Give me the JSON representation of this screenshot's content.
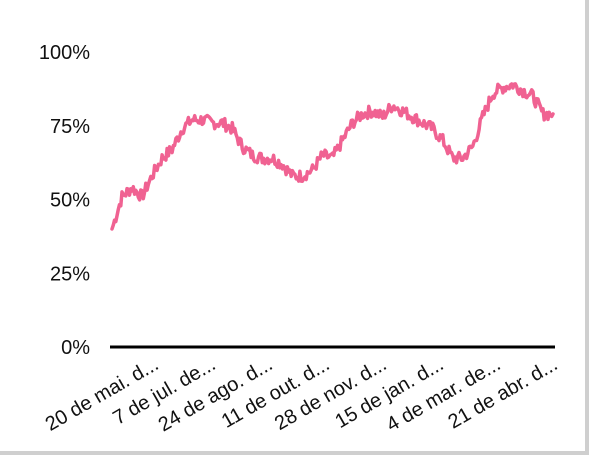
{
  "chart_data": {
    "type": "line",
    "title": "",
    "xlabel": "",
    "ylabel": "",
    "ylim": [
      0,
      100
    ],
    "y_ticks": [
      "0%",
      "25%",
      "50%",
      "75%",
      "100%"
    ],
    "x_ticks": [
      "20 de mai. d...",
      "7 de jul. de...",
      "24 de ago. d...",
      "11 de out. d...",
      "28 de nov. d...",
      "15 de jan. d...",
      "4 de mar. de...",
      "21 de abr. d..."
    ],
    "grid": false,
    "legend": "none",
    "colors": {
      "line": "#f06292",
      "axis": "#000000",
      "frame": "#cfcfcf"
    },
    "series": [
      {
        "x": [
          "20 de mai.",
          "28 de mai.",
          "5 de jun.",
          "13 de jun.",
          "21 de jun.",
          "29 de jun.",
          "7 de jul.",
          "15 de jul.",
          "23 de jul.",
          "31 de jul.",
          "8 de ago.",
          "16 de ago.",
          "24 de ago.",
          "1 de set.",
          "9 de set.",
          "17 de set.",
          "25 de set.",
          "3 de out.",
          "11 de out.",
          "19 de out.",
          "27 de out.",
          "4 de nov.",
          "12 de nov.",
          "20 de nov.",
          "28 de nov.",
          "6 de dez.",
          "14 de dez.",
          "22 de dez.",
          "30 de dez.",
          "7 de jan.",
          "15 de jan.",
          "23 de jan.",
          "31 de jan.",
          "8 de fev.",
          "16 de fev.",
          "24 de fev.",
          "4 de mar.",
          "12 de mar.",
          "20 de mar.",
          "28 de mar.",
          "5 de abr.",
          "13 de abr.",
          "21 de abr.",
          "29 de abr.",
          "7 de mai."
        ],
        "values": [
          40,
          51,
          54,
          51,
          58,
          64,
          67,
          74,
          77,
          77,
          76,
          76,
          74,
          68,
          65,
          64,
          64,
          62,
          58,
          58,
          60,
          65,
          64,
          70,
          76,
          79,
          80,
          78,
          82,
          80,
          78,
          76,
          74,
          70,
          64,
          64,
          68,
          78,
          86,
          88,
          89,
          87,
          85,
          79,
          79
        ]
      }
    ]
  }
}
